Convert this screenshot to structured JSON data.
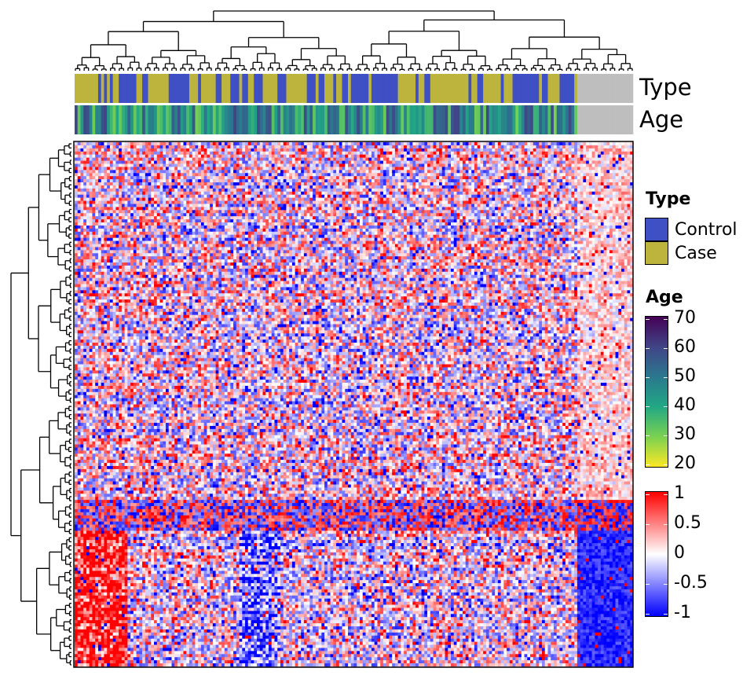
{
  "chart_data": {
    "type": "heatmap",
    "annotation_tracks": [
      {
        "name": "Type",
        "kind": "categorical"
      },
      {
        "name": "Age",
        "kind": "continuous"
      }
    ],
    "legends": {
      "type": {
        "title": "Type",
        "entries": [
          {
            "label": "Control",
            "color": "#3f4fc4"
          },
          {
            "label": "Case",
            "color": "#bcb43c"
          }
        ]
      },
      "age": {
        "title": "Age",
        "ticks": [
          "70",
          "60",
          "50",
          "40",
          "30",
          "20"
        ],
        "range": [
          20,
          70
        ],
        "colors": [
          "#fde725",
          "#7ad151",
          "#22a884",
          "#2a788e",
          "#414487",
          "#440154"
        ]
      },
      "value": {
        "title": "",
        "ticks": [
          "1",
          "0.5",
          "0",
          "-0.5",
          "-1"
        ],
        "range": [
          -1,
          1
        ],
        "colors": [
          "#0000ff",
          "#ffffff",
          "#ff0000"
        ]
      }
    },
    "missing_color": "#bebebe",
    "row_dendrogram": true,
    "column_dendrogram": true
  }
}
